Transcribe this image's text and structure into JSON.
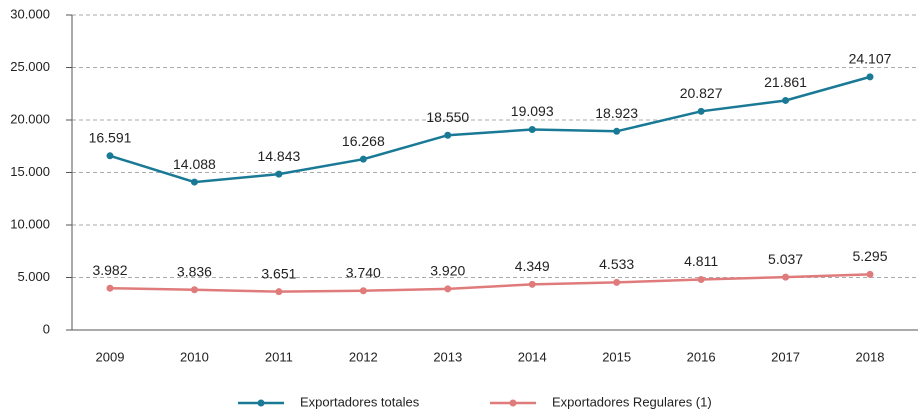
{
  "chart_data": {
    "type": "line",
    "categories": [
      "2009",
      "2010",
      "2011",
      "2012",
      "2013",
      "2014",
      "2015",
      "2016",
      "2017",
      "2018"
    ],
    "series": [
      {
        "name": "Exportadores totales",
        "color": "#1a7a96",
        "values": [
          16591,
          14088,
          14843,
          16268,
          18550,
          19093,
          18923,
          20827,
          21861,
          24107
        ],
        "value_labels": [
          "16.591",
          "14.088",
          "14.843",
          "16.268",
          "18.550",
          "19.093",
          "18.923",
          "20.827",
          "21.861",
          "24.107"
        ]
      },
      {
        "name": "Exportadores Regulares (1)",
        "color": "#e07b7b",
        "values": [
          3982,
          3836,
          3651,
          3740,
          3920,
          4349,
          4533,
          4811,
          5037,
          5295
        ],
        "value_labels": [
          "3.982",
          "3.836",
          "3.651",
          "3.740",
          "3.920",
          "4.349",
          "4.533",
          "4.811",
          "5.037",
          "5.295"
        ]
      }
    ],
    "ylim": [
      0,
      30000
    ],
    "yticks": [
      0,
      {
        "value": 5000,
        "label": "5.000"
      },
      {
        "value": 10000,
        "label": "10.000"
      },
      {
        "value": 15000,
        "label": "15.000"
      },
      {
        "value": 20000,
        "label": "20.000"
      },
      {
        "value": 25000,
        "label": "25.000"
      },
      {
        "value": 30000,
        "label": "30.000"
      }
    ],
    "grid": true,
    "legend": "bottom"
  }
}
